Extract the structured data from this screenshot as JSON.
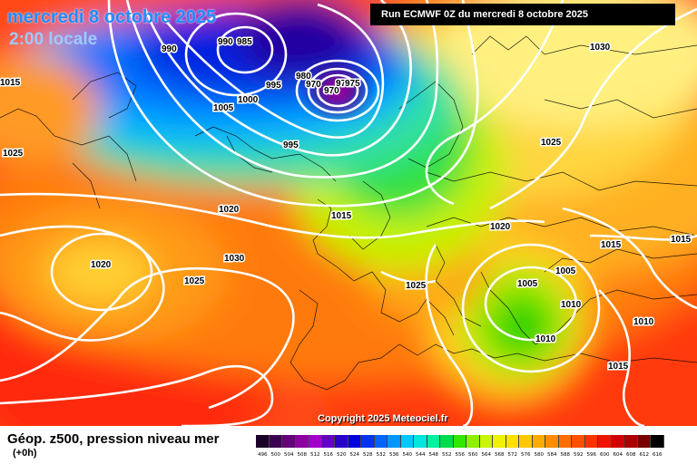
{
  "header": {
    "date": "mercredi 8 octobre 2025",
    "time": "2:00 locale",
    "run": "Run ECMWF 0Z du mercredi 8 octobre 2025"
  },
  "copyright": "Copyright 2025 Meteociel.fr",
  "legend": {
    "title": "Géop. z500, pression niveau mer",
    "subtitle": "(+0h)",
    "scale": [
      {
        "label": "496",
        "color": "#1a0028"
      },
      {
        "label": "500",
        "color": "#3c0050"
      },
      {
        "label": "504",
        "color": "#640078"
      },
      {
        "label": "508",
        "color": "#8c00a0"
      },
      {
        "label": "512",
        "color": "#a000c8"
      },
      {
        "label": "516",
        "color": "#6400c8"
      },
      {
        "label": "520",
        "color": "#2800c8"
      },
      {
        "label": "524",
        "color": "#0000dc"
      },
      {
        "label": "528",
        "color": "#0032f0"
      },
      {
        "label": "532",
        "color": "#0064ff"
      },
      {
        "label": "536",
        "color": "#0096ff"
      },
      {
        "label": "540",
        "color": "#00c8ff"
      },
      {
        "label": "544",
        "color": "#00e6dc"
      },
      {
        "label": "548",
        "color": "#00f0a0"
      },
      {
        "label": "552",
        "color": "#00dc50"
      },
      {
        "label": "556",
        "color": "#32e600"
      },
      {
        "label": "560",
        "color": "#8cf000"
      },
      {
        "label": "564",
        "color": "#c8f500"
      },
      {
        "label": "568",
        "color": "#f0f000"
      },
      {
        "label": "572",
        "color": "#ffe100"
      },
      {
        "label": "576",
        "color": "#ffc800"
      },
      {
        "label": "580",
        "color": "#ffaa00"
      },
      {
        "label": "584",
        "color": "#ff8c00"
      },
      {
        "label": "588",
        "color": "#ff6e00"
      },
      {
        "label": "592",
        "color": "#ff5000"
      },
      {
        "label": "596",
        "color": "#ff3200"
      },
      {
        "label": "600",
        "color": "#f01400"
      },
      {
        "label": "604",
        "color": "#d20000"
      },
      {
        "label": "608",
        "color": "#aa0000"
      },
      {
        "label": "612",
        "color": "#780000"
      },
      {
        "label": "616",
        "color": "#000000"
      }
    ]
  },
  "isobar_labels": [
    "990",
    "990",
    "985",
    "995",
    "1000",
    "1005",
    "995",
    "1015",
    "1025",
    "1020",
    "1020",
    "1030",
    "1025",
    "1030",
    "1025",
    "1020",
    "1015",
    "1015",
    "1005",
    "1025",
    "1005",
    "1010",
    "1010",
    "1010",
    "1015",
    "1015",
    "980",
    "970",
    "970",
    "975",
    "975"
  ],
  "colors": {
    "accent_title": "#1e8cff",
    "contour": "#ffffff"
  }
}
